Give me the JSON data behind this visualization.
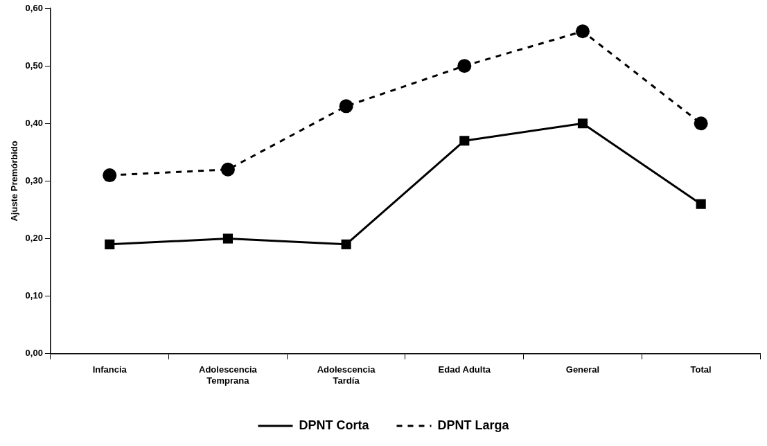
{
  "chart_data": {
    "type": "line",
    "ylabel": "Ajuste Premórbido",
    "categories": [
      "Infancia",
      "Adolescencia\nTemprana",
      "Adolescencia\nTardía",
      "Edad Adulta",
      "General",
      "Total"
    ],
    "series": [
      {
        "name": "DPNT Corta",
        "color": "#000000",
        "marker": "square",
        "line_style": "solid",
        "values": [
          0.19,
          0.2,
          0.19,
          0.37,
          0.4,
          0.26
        ]
      },
      {
        "name": "DPNT Larga",
        "color": "#000000",
        "marker": "circle",
        "line_style": "dashed",
        "values": [
          0.31,
          0.32,
          0.43,
          0.5,
          0.56,
          0.4
        ]
      }
    ],
    "ylim": [
      0,
      0.6
    ],
    "yticks": [
      {
        "value": 0,
        "label": "0,00"
      },
      {
        "value": 0.1,
        "label": "0,10"
      },
      {
        "value": 0.2,
        "label": "0,20"
      },
      {
        "value": 0.3,
        "label": "0,30"
      },
      {
        "value": 0.4,
        "label": "0,40"
      },
      {
        "value": 0.5,
        "label": "0,50"
      },
      {
        "value": 0.6,
        "label": "0,60"
      }
    ],
    "grid": false,
    "legend": "bottom"
  }
}
